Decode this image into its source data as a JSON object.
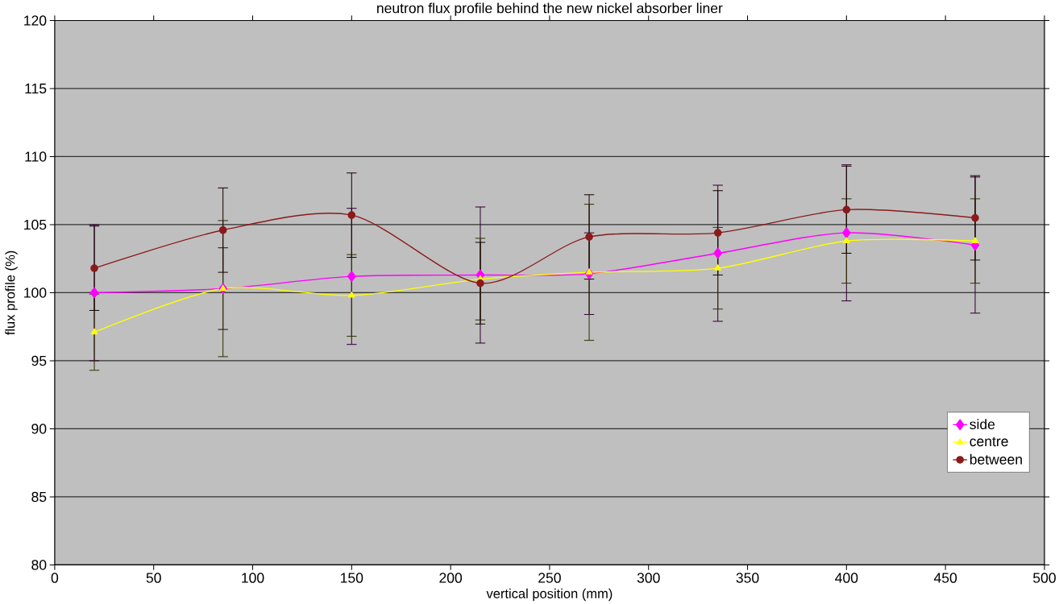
{
  "chart_data": {
    "type": "line",
    "title": "neutron flux profile behind the new nickel absorber liner",
    "xlabel": "vertical position (mm)",
    "ylabel": "flux profile (%)",
    "x": [
      20,
      85,
      150,
      215,
      270,
      335,
      400,
      465
    ],
    "series": [
      {
        "name": "side",
        "color": "#ff00ff",
        "marker": "diamond",
        "values": [
          100.0,
          100.3,
          101.2,
          101.3,
          101.4,
          102.9,
          104.4,
          103.5
        ],
        "errors": [
          5,
          3,
          5,
          5,
          3,
          5,
          5,
          5
        ]
      },
      {
        "name": "centre",
        "color": "#ffff00",
        "marker": "triangle",
        "values": [
          97.1,
          100.3,
          99.8,
          101.0,
          101.5,
          101.8,
          103.8,
          103.8
        ],
        "errors": [
          2.8,
          5,
          3,
          3,
          5,
          3,
          3.1,
          3.1
        ]
      },
      {
        "name": "between",
        "color": "#8b1a1a",
        "marker": "circle",
        "values": [
          101.8,
          104.6,
          105.7,
          100.7,
          104.1,
          104.4,
          106.1,
          105.5
        ],
        "errors": [
          3.1,
          3.1,
          3.1,
          3,
          3.1,
          3.1,
          3.2,
          3.1
        ]
      }
    ],
    "xlim": [
      0,
      500
    ],
    "xticks": [
      0,
      50,
      100,
      150,
      200,
      250,
      300,
      350,
      400,
      450,
      500
    ],
    "ylim": [
      80,
      120
    ],
    "yticks": [
      80,
      85,
      90,
      95,
      100,
      105,
      110,
      115,
      120
    ],
    "grid": "y",
    "legend": "bottom right",
    "line_style": "solid"
  }
}
